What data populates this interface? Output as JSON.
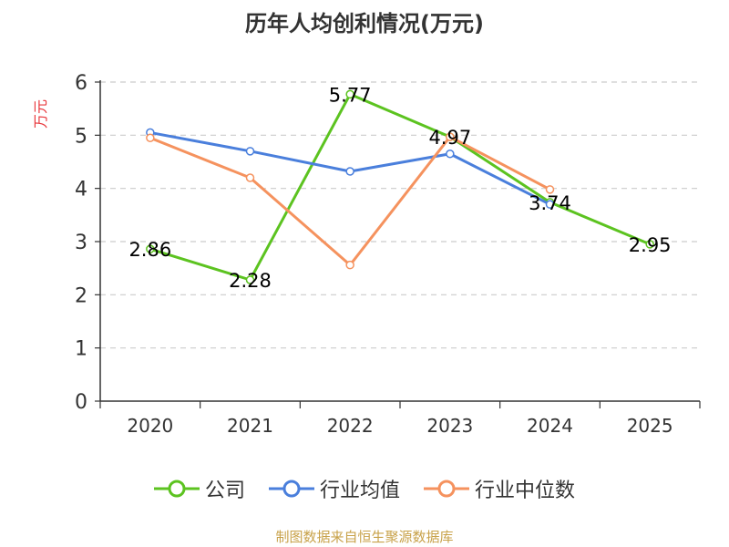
{
  "footer": "制图数据来自恒生聚源数据库",
  "colors": {
    "company": "#5cc320",
    "industry_avg": "#4a7fdc",
    "industry_median": "#f5925e",
    "grid": "#cccccc",
    "axis": "#333333",
    "ylabel": "#e8383d"
  },
  "chart_data": {
    "type": "line",
    "title": "历年人均创利情况(万元)",
    "xlabel": "",
    "ylabel": "万元",
    "categories": [
      "2020",
      "2021",
      "2022",
      "2023",
      "2024",
      "2025"
    ],
    "ylim": [
      0,
      6
    ],
    "yticks": [
      0,
      1,
      2,
      3,
      4,
      5,
      6
    ],
    "grid": true,
    "legend_position": "bottom",
    "series": [
      {
        "name": "公司",
        "key": "company",
        "values": [
          2.86,
          2.28,
          5.77,
          4.97,
          3.74,
          2.95
        ],
        "labels": [
          "2.86",
          "2.28",
          "5.77",
          "4.97",
          "3.74",
          "2.95"
        ]
      },
      {
        "name": "行业均值",
        "key": "industry_avg",
        "values": [
          5.05,
          4.7,
          4.32,
          4.65,
          3.7,
          null
        ]
      },
      {
        "name": "行业中位数",
        "key": "industry_median",
        "values": [
          4.95,
          4.2,
          2.56,
          4.97,
          3.98,
          null
        ]
      }
    ]
  }
}
